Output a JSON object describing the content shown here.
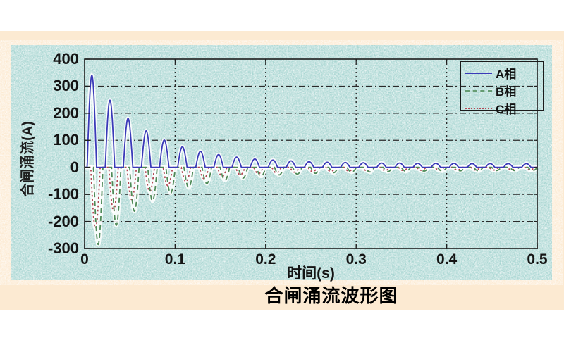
{
  "figure": {
    "caption": "合闸涌流波形图"
  },
  "chart_data": {
    "type": "line",
    "title": "合闸涌流波形图",
    "xlabel": "时间(s)",
    "ylabel": "合闸涌流(A)",
    "xlim": [
      0,
      0.5
    ],
    "ylim": [
      -300,
      400
    ],
    "x_ticks": [
      "0",
      "0.1",
      "0.2",
      "0.3",
      "0.4",
      "0.5"
    ],
    "y_ticks": [
      "400",
      "300",
      "200",
      "100",
      "0",
      "-100",
      "-200",
      "-300"
    ],
    "grid": "dash-dot",
    "legend": {
      "position": "top-right",
      "entries": [
        "A相",
        "B相",
        "C相"
      ]
    },
    "waveform": {
      "period_s": 0.02,
      "pulse_half_width_s": 0.0052,
      "note": "decaying unipolar transformer inrush pulses, one per 50 Hz cycle"
    },
    "series": [
      {
        "name": "A相",
        "color": "#3a3ab8",
        "line_style": "solid",
        "polarity": 1,
        "apex_offset_s": 0.008,
        "cycle_peaks_A": [
          340,
          248,
          181,
          135,
          101,
          76,
          59,
          47,
          38,
          31,
          27,
          24,
          21,
          19,
          18,
          17,
          16,
          16,
          15,
          15,
          15,
          14,
          14,
          14,
          14
        ]
      },
      {
        "name": "B相",
        "color": "#4e8a57",
        "line_style": "dashed",
        "polarity": -1,
        "apex_offset_s": 0.015,
        "cycle_peaks_A": [
          285,
          214,
          162,
          124,
          96,
          75,
          60,
          48,
          40,
          33,
          28,
          25,
          22,
          20,
          18,
          17,
          16,
          15,
          14,
          14,
          13,
          13,
          12,
          12,
          12
        ]
      },
      {
        "name": "C相",
        "color": "#b24855",
        "line_style": "dotted",
        "polarity": -1,
        "apex_offset_s": 0.012,
        "cycle_peaks_A": [
          225,
          162,
          119,
          89,
          68,
          53,
          42,
          34,
          28,
          24,
          21,
          18,
          16,
          15,
          14,
          13,
          12,
          12,
          11,
          11,
          10,
          10,
          10,
          10,
          10
        ]
      }
    ],
    "colors": {
      "panel_border": "#fcead2",
      "plot_background": "#a9d6d2",
      "axis": "#1e1e1e"
    }
  }
}
